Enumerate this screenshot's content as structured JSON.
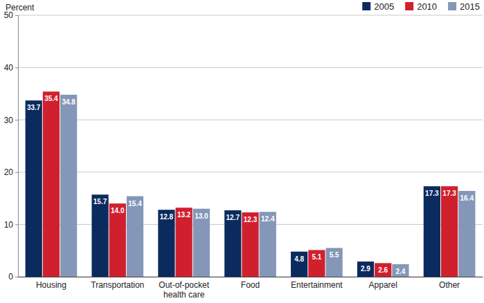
{
  "chart_data": {
    "type": "bar",
    "ylabel": "Percent",
    "categories": [
      "Housing",
      "Transportation",
      "Out-of-pocket health care",
      "Food",
      "Entertainment",
      "Apparel",
      "Other"
    ],
    "series": [
      {
        "name": "2005",
        "color": "#0b2b5e",
        "values": [
          33.7,
          15.7,
          12.8,
          12.7,
          4.8,
          2.9,
          17.3
        ],
        "value_labels": [
          "33.7",
          "15.7",
          "12.8",
          "12.7",
          "4.8",
          "2.9",
          "17.3"
        ]
      },
      {
        "name": "2010",
        "color": "#d0202e",
        "values": [
          35.4,
          14.0,
          13.2,
          12.3,
          5.1,
          2.6,
          17.3
        ],
        "value_labels": [
          "35.4",
          "14.0",
          "13.2",
          "12.3",
          "5.1",
          "2.6",
          "17.3"
        ]
      },
      {
        "name": "2015",
        "color": "#8497b8",
        "values": [
          34.8,
          15.4,
          13.0,
          12.4,
          5.5,
          2.4,
          16.4
        ],
        "value_labels": [
          "34.8",
          "15.4",
          "13.0",
          "12.4",
          "5.5",
          "2.4",
          "16.4"
        ]
      }
    ],
    "ylim": [
      0,
      50
    ],
    "yticks": [
      0,
      10,
      20,
      30,
      40,
      50
    ],
    "grid": true,
    "legend": "top-right",
    "data_labels": true
  }
}
